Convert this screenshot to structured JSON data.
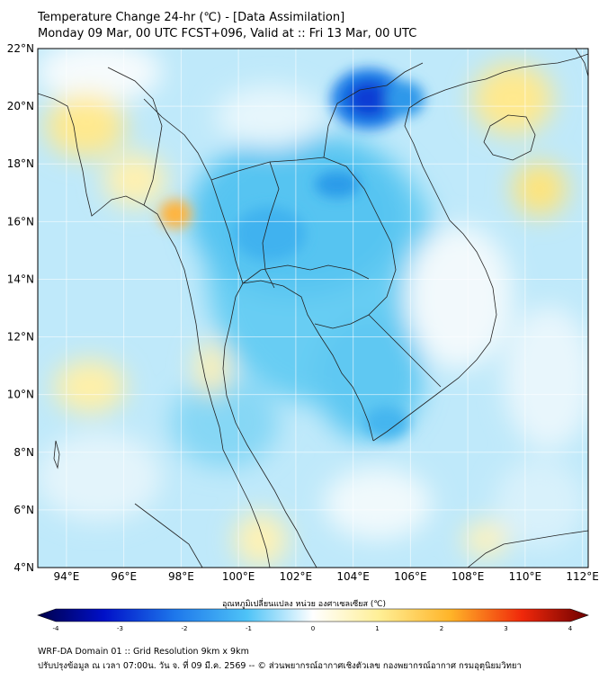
{
  "header": {
    "title_line1": "Temperature Change 24-hr (℃) - [Data Assimilation]",
    "title_line2": "Monday 09 Mar, 00 UTC FCST+096, Valid at :: Fri 13 Mar, 00 UTC"
  },
  "map": {
    "lat_labels": [
      "22°N",
      "20°N",
      "18°N",
      "16°N",
      "14°N",
      "12°N",
      "10°N",
      "8°N",
      "6°N",
      "4°N"
    ],
    "lon_labels": [
      "94°E",
      "96°E",
      "98°E",
      "100°E",
      "102°E",
      "104°E",
      "106°E",
      "108°E",
      "110°E",
      "112°E"
    ],
    "lat_range": [
      4,
      22
    ],
    "lon_range": [
      93,
      112.2
    ]
  },
  "colorbar": {
    "title": "อุณหภูมิเปลี่ยนแปลง หน่วย องศาเซลเซียส (℃)",
    "ticks": [
      "-4",
      "-3",
      "-2",
      "-1",
      "0",
      "1",
      "2",
      "3",
      "4"
    ],
    "range": [
      -4,
      4
    ],
    "colors": [
      "#00003c",
      "#0000a0",
      "#0a3cd2",
      "#1e7aeb",
      "#3cb4f5",
      "#6ed2fa",
      "#a5e6fc",
      "#d2f3fd",
      "#ffffff",
      "#fff5c8",
      "#ffe68c",
      "#ffd250",
      "#ffaa28",
      "#ff7814",
      "#e63c0a",
      "#b40a05",
      "#640000"
    ]
  },
  "footer": {
    "line1": "WRF-DA Domain 01 :: Grid Resolution 9km x 9km",
    "line2": "ปรับปรุงข้อมูล ณ เวลา 07:00น. วัน จ. ที่ 09 มี.ค. 2569 -- © ส่วนพยากรณ์อากาศเชิงตัวเลข กองพยากรณ์อากาศ กรมอุตุนิยมวิทยา"
  }
}
